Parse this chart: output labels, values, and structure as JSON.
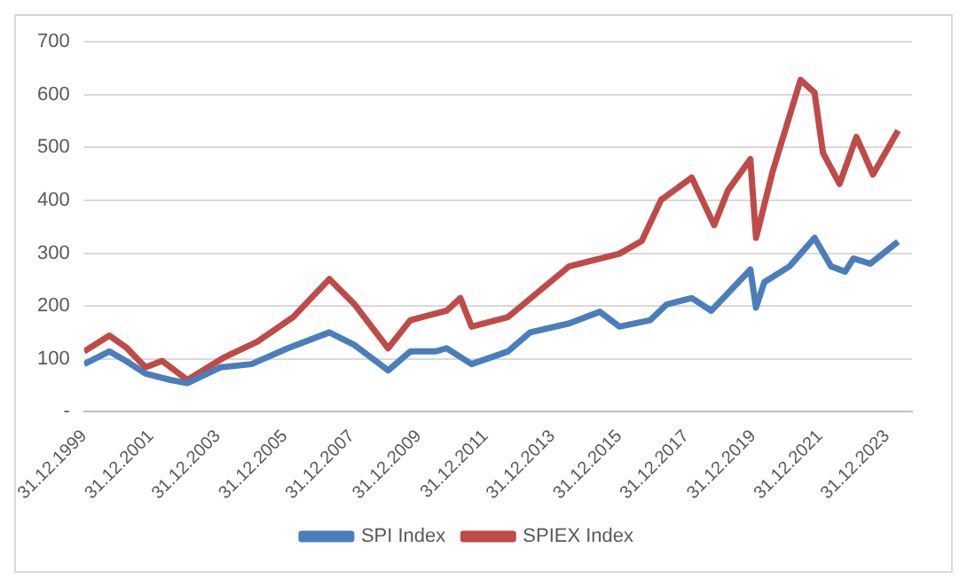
{
  "chart_data": {
    "type": "line",
    "marker": "none",
    "line_style": "solid",
    "grid": "y",
    "legend": "bottom",
    "xlim": [
      "1999-12-31",
      "2024-09-30"
    ],
    "xticks": [
      {
        "value": "1999-12-31",
        "label": "31.12.1999"
      },
      {
        "value": "2001-12-31",
        "label": "31.12.2001"
      },
      {
        "value": "2003-12-31",
        "label": "31.12.2003"
      },
      {
        "value": "2005-12-31",
        "label": "31.12.2005"
      },
      {
        "value": "2007-12-31",
        "label": "31.12.2007"
      },
      {
        "value": "2009-12-31",
        "label": "31.12.2009"
      },
      {
        "value": "2011-12-31",
        "label": "31.12.2011"
      },
      {
        "value": "2013-12-31",
        "label": "31.12.2013"
      },
      {
        "value": "2015-12-31",
        "label": "31.12.2015"
      },
      {
        "value": "2017-12-31",
        "label": "31.12.2017"
      },
      {
        "value": "2019-12-31",
        "label": "31.12.2019"
      },
      {
        "value": "2021-12-31",
        "label": "31.12.2021"
      },
      {
        "value": "2023-12-31",
        "label": "31.12.2023"
      }
    ],
    "ylim": [
      0,
      700
    ],
    "yticks": [
      {
        "value": 0,
        "label": "-"
      },
      100,
      200,
      300,
      400,
      500,
      600,
      700
    ],
    "series": [
      {
        "name": "SPI Index",
        "color": "#4a7ebb",
        "x": [
          "2000-01",
          "2000-10",
          "2001-04",
          "2001-11",
          "2002-08",
          "2003-02",
          "2004-02",
          "2005-01",
          "2006-02",
          "2007-05",
          "2008-02",
          "2009-02",
          "2009-10",
          "2010-07",
          "2010-11",
          "2011-08",
          "2012-09",
          "2013-05",
          "2014-07",
          "2015-06",
          "2016-01",
          "2016-12",
          "2017-06",
          "2018-03",
          "2018-10",
          "2019-12",
          "2020-02",
          "2020-05",
          "2021-02",
          "2021-11",
          "2022-05",
          "2022-10",
          "2023-01",
          "2023-07",
          "2024-05"
        ],
        "values": [
          90,
          114,
          96,
          72,
          60,
          54,
          84,
          90,
          120,
          150,
          126,
          78,
          114,
          114,
          120,
          90,
          114,
          150,
          167,
          189,
          161,
          173,
          203,
          215,
          191,
          269,
          197,
          245,
          275,
          329,
          275,
          265,
          290,
          280,
          322
        ]
      },
      {
        "name": "SPIEX Index",
        "color": "#be4b48",
        "x": [
          "2000-01",
          "2000-10",
          "2001-04",
          "2001-11",
          "2002-05",
          "2003-02",
          "2004-03",
          "2005-03",
          "2006-04",
          "2007-05",
          "2008-02",
          "2009-02",
          "2009-10",
          "2010-11",
          "2011-04",
          "2011-08",
          "2012-09",
          "2014-07",
          "2016-01",
          "2016-09",
          "2017-04",
          "2018-03",
          "2018-11",
          "2019-04",
          "2019-12",
          "2020-02",
          "2020-08",
          "2021-06",
          "2021-11",
          "2022-02",
          "2022-08",
          "2023-02",
          "2023-08",
          "2024-05"
        ],
        "values": [
          114,
          144,
          122,
          84,
          96,
          60,
          102,
          132,
          179,
          251,
          203,
          120,
          173,
          191,
          215,
          161,
          179,
          275,
          299,
          323,
          401,
          443,
          353,
          419,
          478,
          329,
          455,
          628,
          604,
          490,
          431,
          520,
          449,
          532
        ]
      }
    ]
  }
}
